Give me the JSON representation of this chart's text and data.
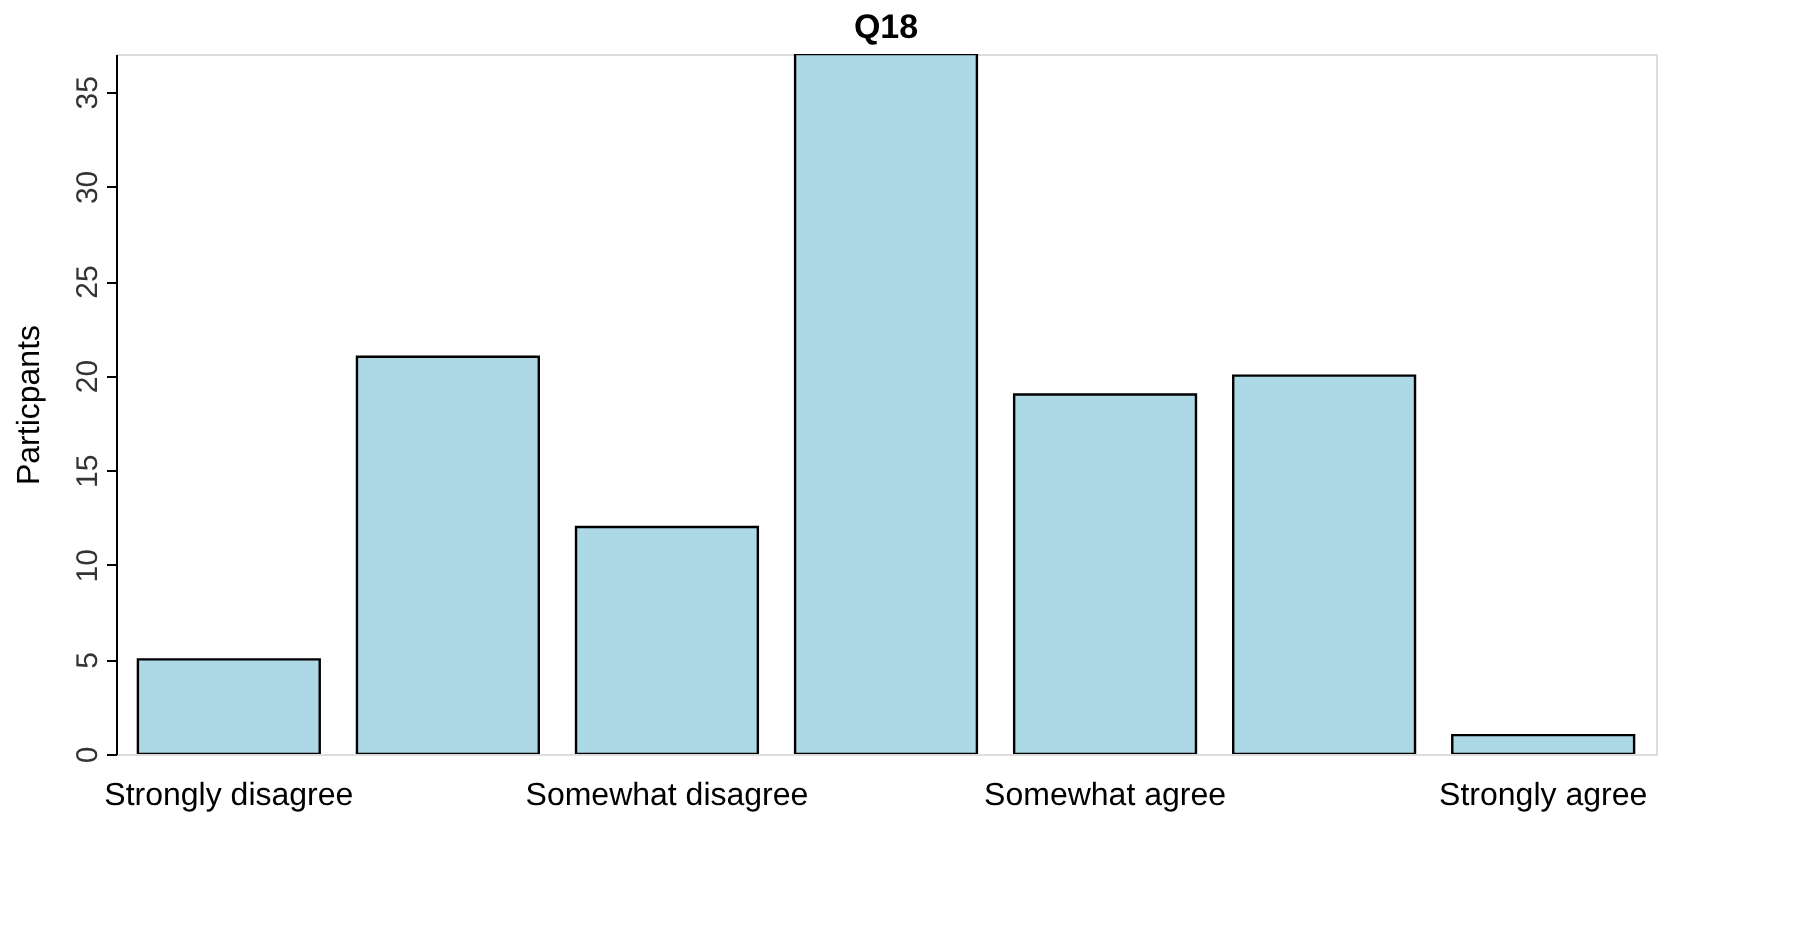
{
  "chart_data": {
    "type": "bar",
    "title": "Q18",
    "ylabel": "Particpants",
    "categories": [
      "Strongly disagree",
      null,
      "Somewhat disagree",
      null,
      "Somewhat agree",
      null,
      "Strongly agree"
    ],
    "values": [
      5,
      21,
      12,
      37,
      19,
      20,
      1
    ],
    "color": "#add8e6",
    "ylim": [
      0,
      37
    ],
    "yticks": [
      0,
      5,
      10,
      15,
      20,
      25,
      30,
      35
    ],
    "grid": false
  }
}
